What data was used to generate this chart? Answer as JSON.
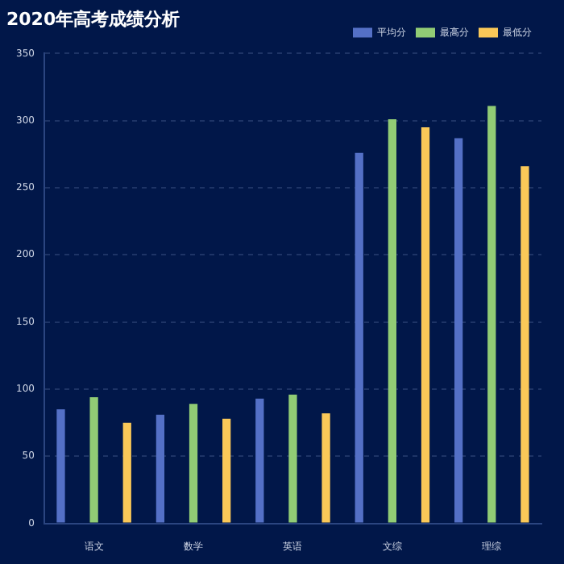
{
  "chart_data": {
    "type": "bar",
    "title": "2020年高考成绩分析",
    "categories": [
      "语文",
      "数学",
      "英语",
      "文综",
      "理综"
    ],
    "series": [
      {
        "name": "平均分",
        "color": "#5470c6",
        "values": [
          85,
          81,
          93,
          276,
          287
        ]
      },
      {
        "name": "最高分",
        "color": "#91cc75",
        "values": [
          94,
          89,
          96,
          301,
          311
        ]
      },
      {
        "name": "最低分",
        "color": "#fac858",
        "values": [
          75,
          78,
          82,
          295,
          266
        ]
      }
    ],
    "ylim": [
      0,
      350
    ],
    "yticks": [
      0,
      50,
      100,
      150,
      200,
      250,
      300,
      350
    ],
    "grid": "y",
    "legend": "top right"
  }
}
